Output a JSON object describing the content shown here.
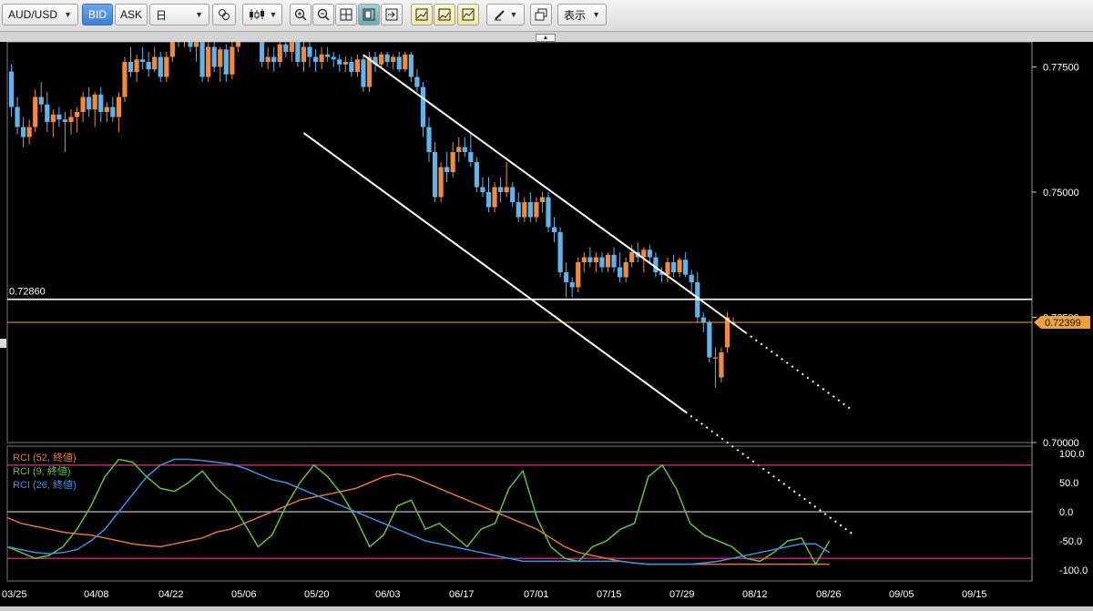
{
  "toolbar": {
    "symbol": "AUD/USD",
    "bid_label": "BID",
    "ask_label": "ASK",
    "timeframe": "日",
    "display_label": "表示"
  },
  "price_axis": {
    "ticks": [
      "0.77500",
      "0.75000",
      "0.72500",
      "0.70000"
    ],
    "current_price": "0.72399",
    "current_price_color": "#f0a23a",
    "horizontal_line_label": "0.72860"
  },
  "indicator": {
    "legend": [
      {
        "label": "RCI (52, 終値)",
        "color": "#e0782e"
      },
      {
        "label": "RCI (9, 終値)",
        "color": "#5ec43c"
      },
      {
        "label": "RCI (26, 終値)",
        "color": "#3f8fe0"
      }
    ],
    "axis_ticks": [
      "100.0",
      "50.0",
      "0.0",
      "-50.0",
      "-100.0"
    ]
  },
  "time_axis": {
    "labels": [
      "03/25",
      "04/08",
      "04/22",
      "05/06",
      "05/20",
      "06/03",
      "06/17",
      "07/01",
      "07/15",
      "07/29",
      "08/12",
      "08/26",
      "09/05",
      "09/15"
    ]
  },
  "colors": {
    "bull": "#f08a3c",
    "bear": "#5eb4ec",
    "background": "#000000"
  },
  "chart_data": {
    "type": "candlestick",
    "symbol": "AUD/USD",
    "timeframe": "daily",
    "y_range": [
      0.7,
      0.78
    ],
    "candles": [
      [
        0.7741,
        0.7755,
        0.765,
        0.767
      ],
      [
        0.767,
        0.769,
        0.7615,
        0.763
      ],
      [
        0.763,
        0.765,
        0.759,
        0.761
      ],
      [
        0.761,
        0.7645,
        0.7595,
        0.763
      ],
      [
        0.763,
        0.7705,
        0.762,
        0.769
      ],
      [
        0.769,
        0.772,
        0.766,
        0.7675
      ],
      [
        0.7675,
        0.77,
        0.762,
        0.764
      ],
      [
        0.764,
        0.7665,
        0.761,
        0.7655
      ],
      [
        0.7655,
        0.767,
        0.763,
        0.7645
      ],
      [
        0.7645,
        0.766,
        0.758,
        0.764
      ],
      [
        0.764,
        0.7665,
        0.7615,
        0.765
      ],
      [
        0.765,
        0.767,
        0.762,
        0.766
      ],
      [
        0.766,
        0.77,
        0.764,
        0.769
      ],
      [
        0.769,
        0.771,
        0.765,
        0.7665
      ],
      [
        0.7665,
        0.77,
        0.763,
        0.7695
      ],
      [
        0.7695,
        0.771,
        0.764,
        0.766
      ],
      [
        0.766,
        0.768,
        0.764,
        0.767
      ],
      [
        0.767,
        0.769,
        0.764,
        0.765
      ],
      [
        0.765,
        0.77,
        0.762,
        0.769
      ],
      [
        0.769,
        0.777,
        0.768,
        0.776
      ],
      [
        0.776,
        0.779,
        0.773,
        0.774
      ],
      [
        0.774,
        0.7775,
        0.772,
        0.7765
      ],
      [
        0.7765,
        0.779,
        0.7745,
        0.776
      ],
      [
        0.776,
        0.778,
        0.773,
        0.7745
      ],
      [
        0.7745,
        0.779,
        0.774,
        0.777
      ],
      [
        0.777,
        0.778,
        0.772,
        0.773
      ],
      [
        0.773,
        0.778,
        0.772,
        0.777
      ],
      [
        0.777,
        0.783,
        0.776,
        0.782
      ],
      [
        0.782,
        0.7835,
        0.779,
        0.78
      ],
      [
        0.78,
        0.783,
        0.779,
        0.7815
      ],
      [
        0.7815,
        0.783,
        0.778,
        0.779
      ],
      [
        0.779,
        0.782,
        0.776,
        0.78
      ],
      [
        0.78,
        0.781,
        0.772,
        0.773
      ],
      [
        0.773,
        0.78,
        0.772,
        0.779
      ],
      [
        0.779,
        0.781,
        0.774,
        0.775
      ],
      [
        0.775,
        0.779,
        0.772,
        0.7785
      ],
      [
        0.7785,
        0.7795,
        0.772,
        0.7735
      ],
      [
        0.7735,
        0.78,
        0.7725,
        0.779
      ],
      [
        0.779,
        0.784,
        0.778,
        0.783
      ],
      [
        0.783,
        0.788,
        0.781,
        0.786
      ],
      [
        0.786,
        0.788,
        0.784,
        0.7855
      ],
      [
        0.7855,
        0.7875,
        0.784,
        0.786
      ],
      [
        0.786,
        0.787,
        0.775,
        0.776
      ],
      [
        0.776,
        0.779,
        0.7745,
        0.777
      ],
      [
        0.777,
        0.779,
        0.774,
        0.776
      ],
      [
        0.776,
        0.78,
        0.775,
        0.7795
      ],
      [
        0.7795,
        0.781,
        0.777,
        0.778
      ],
      [
        0.778,
        0.7805,
        0.776,
        0.78
      ],
      [
        0.78,
        0.781,
        0.775,
        0.776
      ],
      [
        0.776,
        0.78,
        0.774,
        0.779
      ],
      [
        0.779,
        0.78,
        0.775,
        0.777
      ],
      [
        0.777,
        0.7785,
        0.774,
        0.776
      ],
      [
        0.776,
        0.779,
        0.7745,
        0.7775
      ],
      [
        0.7775,
        0.779,
        0.776,
        0.777
      ],
      [
        0.777,
        0.778,
        0.775,
        0.7765
      ],
      [
        0.7765,
        0.7775,
        0.774,
        0.7755
      ],
      [
        0.7755,
        0.777,
        0.774,
        0.776
      ],
      [
        0.776,
        0.777,
        0.773,
        0.774
      ],
      [
        0.774,
        0.7775,
        0.773,
        0.7765
      ],
      [
        0.7765,
        0.7775,
        0.77,
        0.771
      ],
      [
        0.771,
        0.778,
        0.77,
        0.777
      ],
      [
        0.777,
        0.778,
        0.774,
        0.7755
      ],
      [
        0.7755,
        0.778,
        0.775,
        0.7775
      ],
      [
        0.7775,
        0.778,
        0.775,
        0.776
      ],
      [
        0.776,
        0.7775,
        0.7745,
        0.777
      ],
      [
        0.777,
        0.778,
        0.774,
        0.7745
      ],
      [
        0.7745,
        0.778,
        0.774,
        0.7775
      ],
      [
        0.7775,
        0.778,
        0.772,
        0.773
      ],
      [
        0.773,
        0.7745,
        0.77,
        0.771
      ],
      [
        0.771,
        0.772,
        0.761,
        0.763
      ],
      [
        0.763,
        0.765,
        0.756,
        0.758
      ],
      [
        0.758,
        0.76,
        0.748,
        0.749
      ],
      [
        0.749,
        0.756,
        0.748,
        0.755
      ],
      [
        0.755,
        0.758,
        0.752,
        0.754
      ],
      [
        0.754,
        0.76,
        0.753,
        0.758
      ],
      [
        0.758,
        0.761,
        0.756,
        0.759
      ],
      [
        0.759,
        0.761,
        0.757,
        0.758
      ],
      [
        0.758,
        0.762,
        0.755,
        0.756
      ],
      [
        0.756,
        0.757,
        0.75,
        0.751
      ],
      [
        0.751,
        0.753,
        0.749,
        0.75
      ],
      [
        0.75,
        0.753,
        0.746,
        0.747
      ],
      [
        0.747,
        0.752,
        0.746,
        0.751
      ],
      [
        0.751,
        0.753,
        0.748,
        0.75
      ],
      [
        0.75,
        0.756,
        0.749,
        0.751
      ],
      [
        0.751,
        0.752,
        0.747,
        0.748
      ],
      [
        0.748,
        0.75,
        0.744,
        0.745
      ],
      [
        0.745,
        0.749,
        0.744,
        0.748
      ],
      [
        0.748,
        0.75,
        0.744,
        0.745
      ],
      [
        0.745,
        0.749,
        0.744,
        0.748
      ],
      [
        0.748,
        0.75,
        0.746,
        0.749
      ],
      [
        0.749,
        0.75,
        0.742,
        0.743
      ],
      [
        0.743,
        0.745,
        0.74,
        0.742
      ],
      [
        0.742,
        0.743,
        0.733,
        0.734
      ],
      [
        0.734,
        0.736,
        0.729,
        0.732
      ],
      [
        0.732,
        0.733,
        0.729,
        0.731
      ],
      [
        0.731,
        0.737,
        0.73,
        0.736
      ],
      [
        0.736,
        0.738,
        0.734,
        0.737
      ],
      [
        0.737,
        0.739,
        0.735,
        0.736
      ],
      [
        0.736,
        0.738,
        0.734,
        0.737
      ],
      [
        0.737,
        0.738,
        0.734,
        0.735
      ],
      [
        0.735,
        0.738,
        0.734,
        0.7375
      ],
      [
        0.7375,
        0.739,
        0.734,
        0.735
      ],
      [
        0.735,
        0.738,
        0.732,
        0.733
      ],
      [
        0.733,
        0.737,
        0.732,
        0.736
      ],
      [
        0.736,
        0.7395,
        0.735,
        0.738
      ],
      [
        0.738,
        0.74,
        0.736,
        0.737
      ],
      [
        0.737,
        0.739,
        0.734,
        0.7385
      ],
      [
        0.7385,
        0.7395,
        0.736,
        0.737
      ],
      [
        0.737,
        0.738,
        0.733,
        0.734
      ],
      [
        0.734,
        0.735,
        0.732,
        0.7335
      ],
      [
        0.7335,
        0.737,
        0.732,
        0.736
      ],
      [
        0.736,
        0.7375,
        0.733,
        0.734
      ],
      [
        0.734,
        0.737,
        0.733,
        0.7365
      ],
      [
        0.7365,
        0.738,
        0.733,
        0.7335
      ],
      [
        0.7335,
        0.7345,
        0.73,
        0.732
      ],
      [
        0.732,
        0.734,
        0.724,
        0.725
      ],
      [
        0.725,
        0.726,
        0.722,
        0.724
      ],
      [
        0.724,
        0.7245,
        0.716,
        0.717
      ],
      [
        0.717,
        0.719,
        0.711,
        0.717
      ],
      [
        0.713,
        0.719,
        0.712,
        0.718
      ],
      [
        0.719,
        0.726,
        0.718,
        0.725
      ],
      [
        0.724,
        0.725,
        0.7235,
        0.724
      ]
    ],
    "horizontal_line": 0.7286,
    "current_price": 0.72399,
    "channel": {
      "upper": [
        [
          59,
          0.7774
        ],
        [
          123,
          0.722
        ]
      ],
      "lower": [
        [
          49,
          0.7618
        ],
        [
          113,
          0.7061
        ]
      ],
      "extension_end_index": 141
    },
    "rci_ylim": [
      -100,
      100
    ],
    "rci_levels": [
      80,
      0,
      -80
    ],
    "rci_series": [
      {
        "name": "RCI (52, 終値)",
        "values": [
          -10,
          -20,
          -25,
          -30,
          -35,
          -38,
          -40,
          -45,
          -50,
          -55,
          -58,
          -60,
          -55,
          -50,
          -45,
          -35,
          -30,
          -20,
          -10,
          0,
          10,
          20,
          25,
          30,
          35,
          40,
          50,
          60,
          65,
          60,
          50,
          40,
          30,
          20,
          10,
          0,
          -10,
          -20,
          -30,
          -45,
          -60,
          -70,
          -75,
          -80,
          -85,
          -88,
          -90,
          -90,
          -90,
          -90,
          -90,
          -90,
          -90,
          -90,
          -90,
          -90,
          -90,
          -90,
          -90,
          -90
        ]
      },
      {
        "name": "RCI (9, 終値)",
        "values": [
          -60,
          -70,
          -80,
          -75,
          -60,
          -30,
          10,
          60,
          90,
          85,
          60,
          40,
          35,
          50,
          70,
          40,
          20,
          -20,
          -60,
          -40,
          10,
          50,
          80,
          60,
          30,
          -10,
          -60,
          -40,
          10,
          20,
          -30,
          -20,
          -40,
          -60,
          -30,
          -20,
          40,
          70,
          -10,
          -60,
          -80,
          -85,
          -60,
          -50,
          -30,
          -20,
          60,
          80,
          40,
          -20,
          -40,
          -50,
          -60,
          -80,
          -85,
          -70,
          -50,
          -45,
          -90,
          -50
        ]
      },
      {
        "name": "RCI (26, 終値)",
        "values": [
          -60,
          -65,
          -70,
          -72,
          -70,
          -65,
          -50,
          -30,
          0,
          30,
          60,
          80,
          90,
          90,
          88,
          85,
          82,
          75,
          65,
          55,
          50,
          40,
          30,
          20,
          10,
          0,
          -10,
          -20,
          -30,
          -40,
          -50,
          -55,
          -60,
          -65,
          -70,
          -75,
          -80,
          -85,
          -85,
          -85,
          -85,
          -85,
          -85,
          -85,
          -85,
          -88,
          -90,
          -90,
          -90,
          -90,
          -88,
          -85,
          -80,
          -75,
          -70,
          -65,
          -60,
          -55,
          -55,
          -70
        ]
      }
    ]
  }
}
